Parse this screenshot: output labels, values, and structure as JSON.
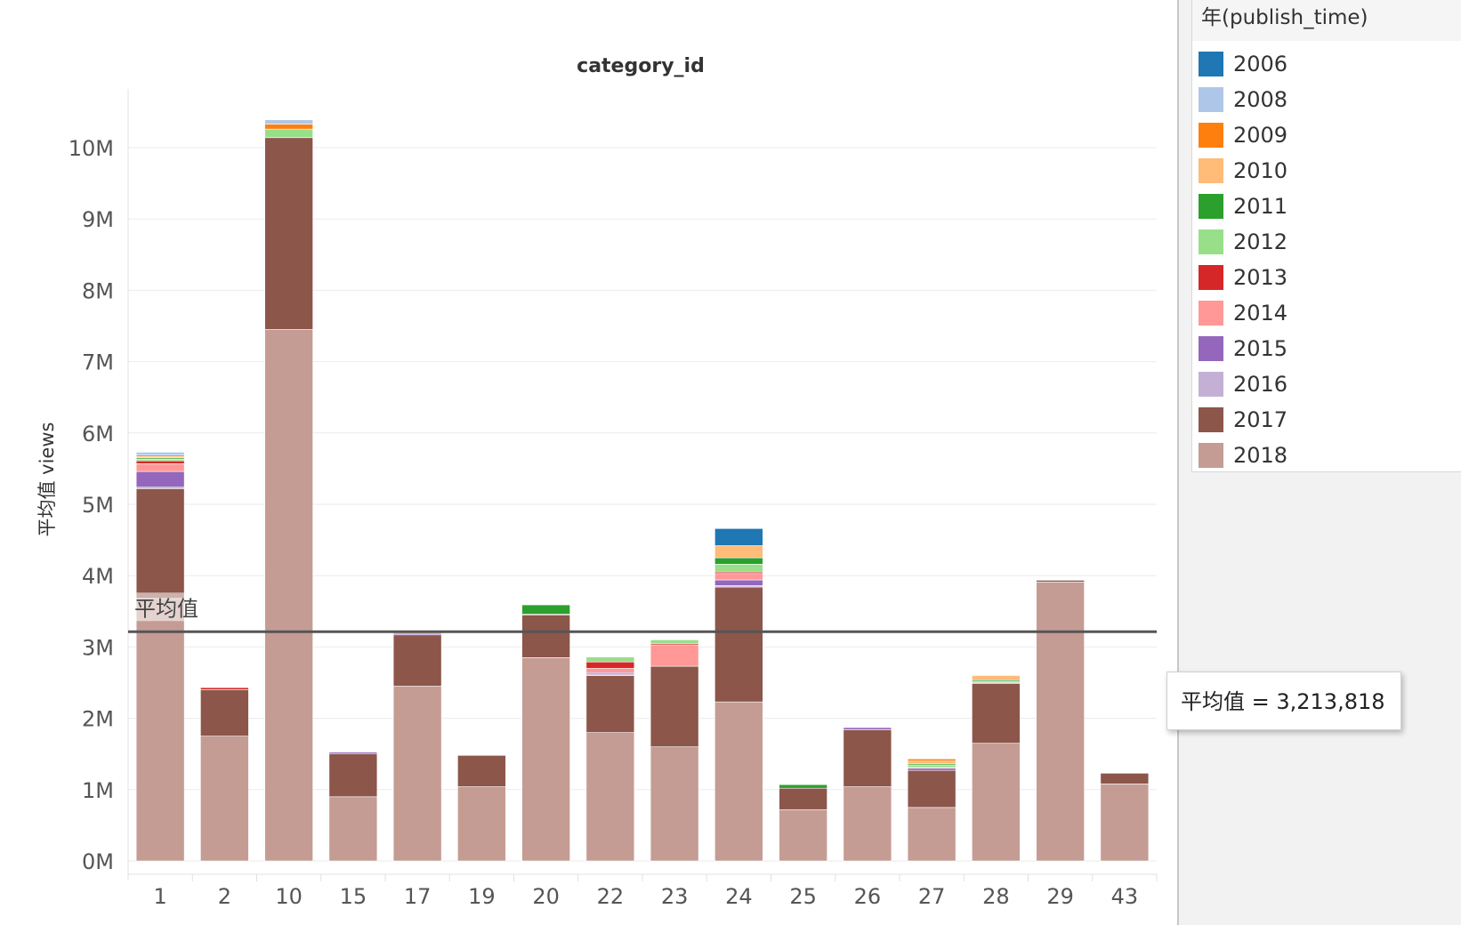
{
  "legend": {
    "title": "年(publish_time)",
    "items": [
      {
        "label": "2006",
        "color": "#1f77b4"
      },
      {
        "label": "2008",
        "color": "#aec7e8"
      },
      {
        "label": "2009",
        "color": "#ff7f0e"
      },
      {
        "label": "2010",
        "color": "#ffbb78"
      },
      {
        "label": "2011",
        "color": "#2ca02c"
      },
      {
        "label": "2012",
        "color": "#98df8a"
      },
      {
        "label": "2013",
        "color": "#d62728"
      },
      {
        "label": "2014",
        "color": "#ff9896"
      },
      {
        "label": "2015",
        "color": "#9467bd"
      },
      {
        "label": "2016",
        "color": "#c5b0d5"
      },
      {
        "label": "2017",
        "color": "#8c564b"
      },
      {
        "label": "2018",
        "color": "#c49c94"
      }
    ]
  },
  "tooltip": {
    "text": "平均值 = 3,213,818"
  },
  "chart_data": {
    "type": "bar",
    "stacked": true,
    "title": "category_id",
    "xlabel": "",
    "ylabel": "平均值 views",
    "ylim": [
      -200000,
      10900000
    ],
    "yticks": [
      0,
      1000000,
      2000000,
      3000000,
      4000000,
      5000000,
      6000000,
      7000000,
      8000000,
      9000000,
      10000000
    ],
    "ytick_labels": [
      "0M",
      "1M",
      "2M",
      "3M",
      "4M",
      "5M",
      "6M",
      "7M",
      "8M",
      "9M",
      "10M"
    ],
    "grid": true,
    "legend_position": "right",
    "categories": [
      "1",
      "2",
      "10",
      "15",
      "17",
      "19",
      "20",
      "22",
      "23",
      "24",
      "25",
      "26",
      "27",
      "28",
      "29",
      "43"
    ],
    "series": [
      {
        "name": "2018",
        "values": [
          3680000,
          1750000,
          7450000,
          900000,
          2450000,
          1040000,
          2850000,
          1800000,
          1600000,
          2230000,
          720000,
          1040000,
          750000,
          1650000,
          3910000,
          1080000
        ]
      },
      {
        "name": "2017",
        "values": [
          1540000,
          650000,
          2690000,
          600000,
          720000,
          440000,
          600000,
          800000,
          1130000,
          1610000,
          300000,
          800000,
          520000,
          840000,
          25000,
          150000
        ]
      },
      {
        "name": "2016",
        "values": [
          20000,
          0,
          0,
          0,
          0,
          0,
          0,
          20000,
          0,
          20000,
          0,
          0,
          0,
          0,
          0,
          0
        ]
      },
      {
        "name": "2015",
        "values": [
          220000,
          0,
          0,
          25000,
          20000,
          0,
          0,
          20000,
          0,
          80000,
          0,
          30000,
          30000,
          0,
          0,
          0
        ]
      },
      {
        "name": "2014",
        "values": [
          110000,
          0,
          0,
          0,
          0,
          0,
          0,
          60000,
          300000,
          90000,
          0,
          0,
          0,
          0,
          0,
          0
        ]
      },
      {
        "name": "2013",
        "values": [
          40000,
          30000,
          0,
          0,
          0,
          0,
          10000,
          90000,
          20000,
          20000,
          0,
          0,
          10000,
          10000,
          0,
          0
        ]
      },
      {
        "name": "2012",
        "values": [
          20000,
          0,
          120000,
          0,
          0,
          0,
          0,
          70000,
          50000,
          110000,
          0,
          0,
          30000,
          20000,
          0,
          0
        ]
      },
      {
        "name": "2011",
        "values": [
          20000,
          0,
          0,
          0,
          0,
          0,
          130000,
          0,
          0,
          90000,
          50000,
          0,
          20000,
          20000,
          0,
          0
        ]
      },
      {
        "name": "2010",
        "values": [
          20000,
          0,
          0,
          0,
          20000,
          0,
          0,
          0,
          0,
          170000,
          0,
          0,
          40000,
          60000,
          0,
          0
        ]
      },
      {
        "name": "2009",
        "values": [
          20000,
          0,
          70000,
          0,
          20000,
          0,
          0,
          0,
          0,
          0,
          0,
          0,
          30000,
          0,
          0,
          0
        ]
      },
      {
        "name": "2008",
        "values": [
          40000,
          0,
          60000,
          0,
          0,
          0,
          0,
          0,
          0,
          0,
          0,
          0,
          0,
          0,
          0,
          0
        ]
      },
      {
        "name": "2006",
        "values": [
          0,
          0,
          0,
          0,
          0,
          0,
          0,
          0,
          0,
          240000,
          0,
          0,
          0,
          0,
          0,
          0
        ]
      }
    ],
    "reference_line": {
      "label": "平均值",
      "value": 3213818
    }
  }
}
